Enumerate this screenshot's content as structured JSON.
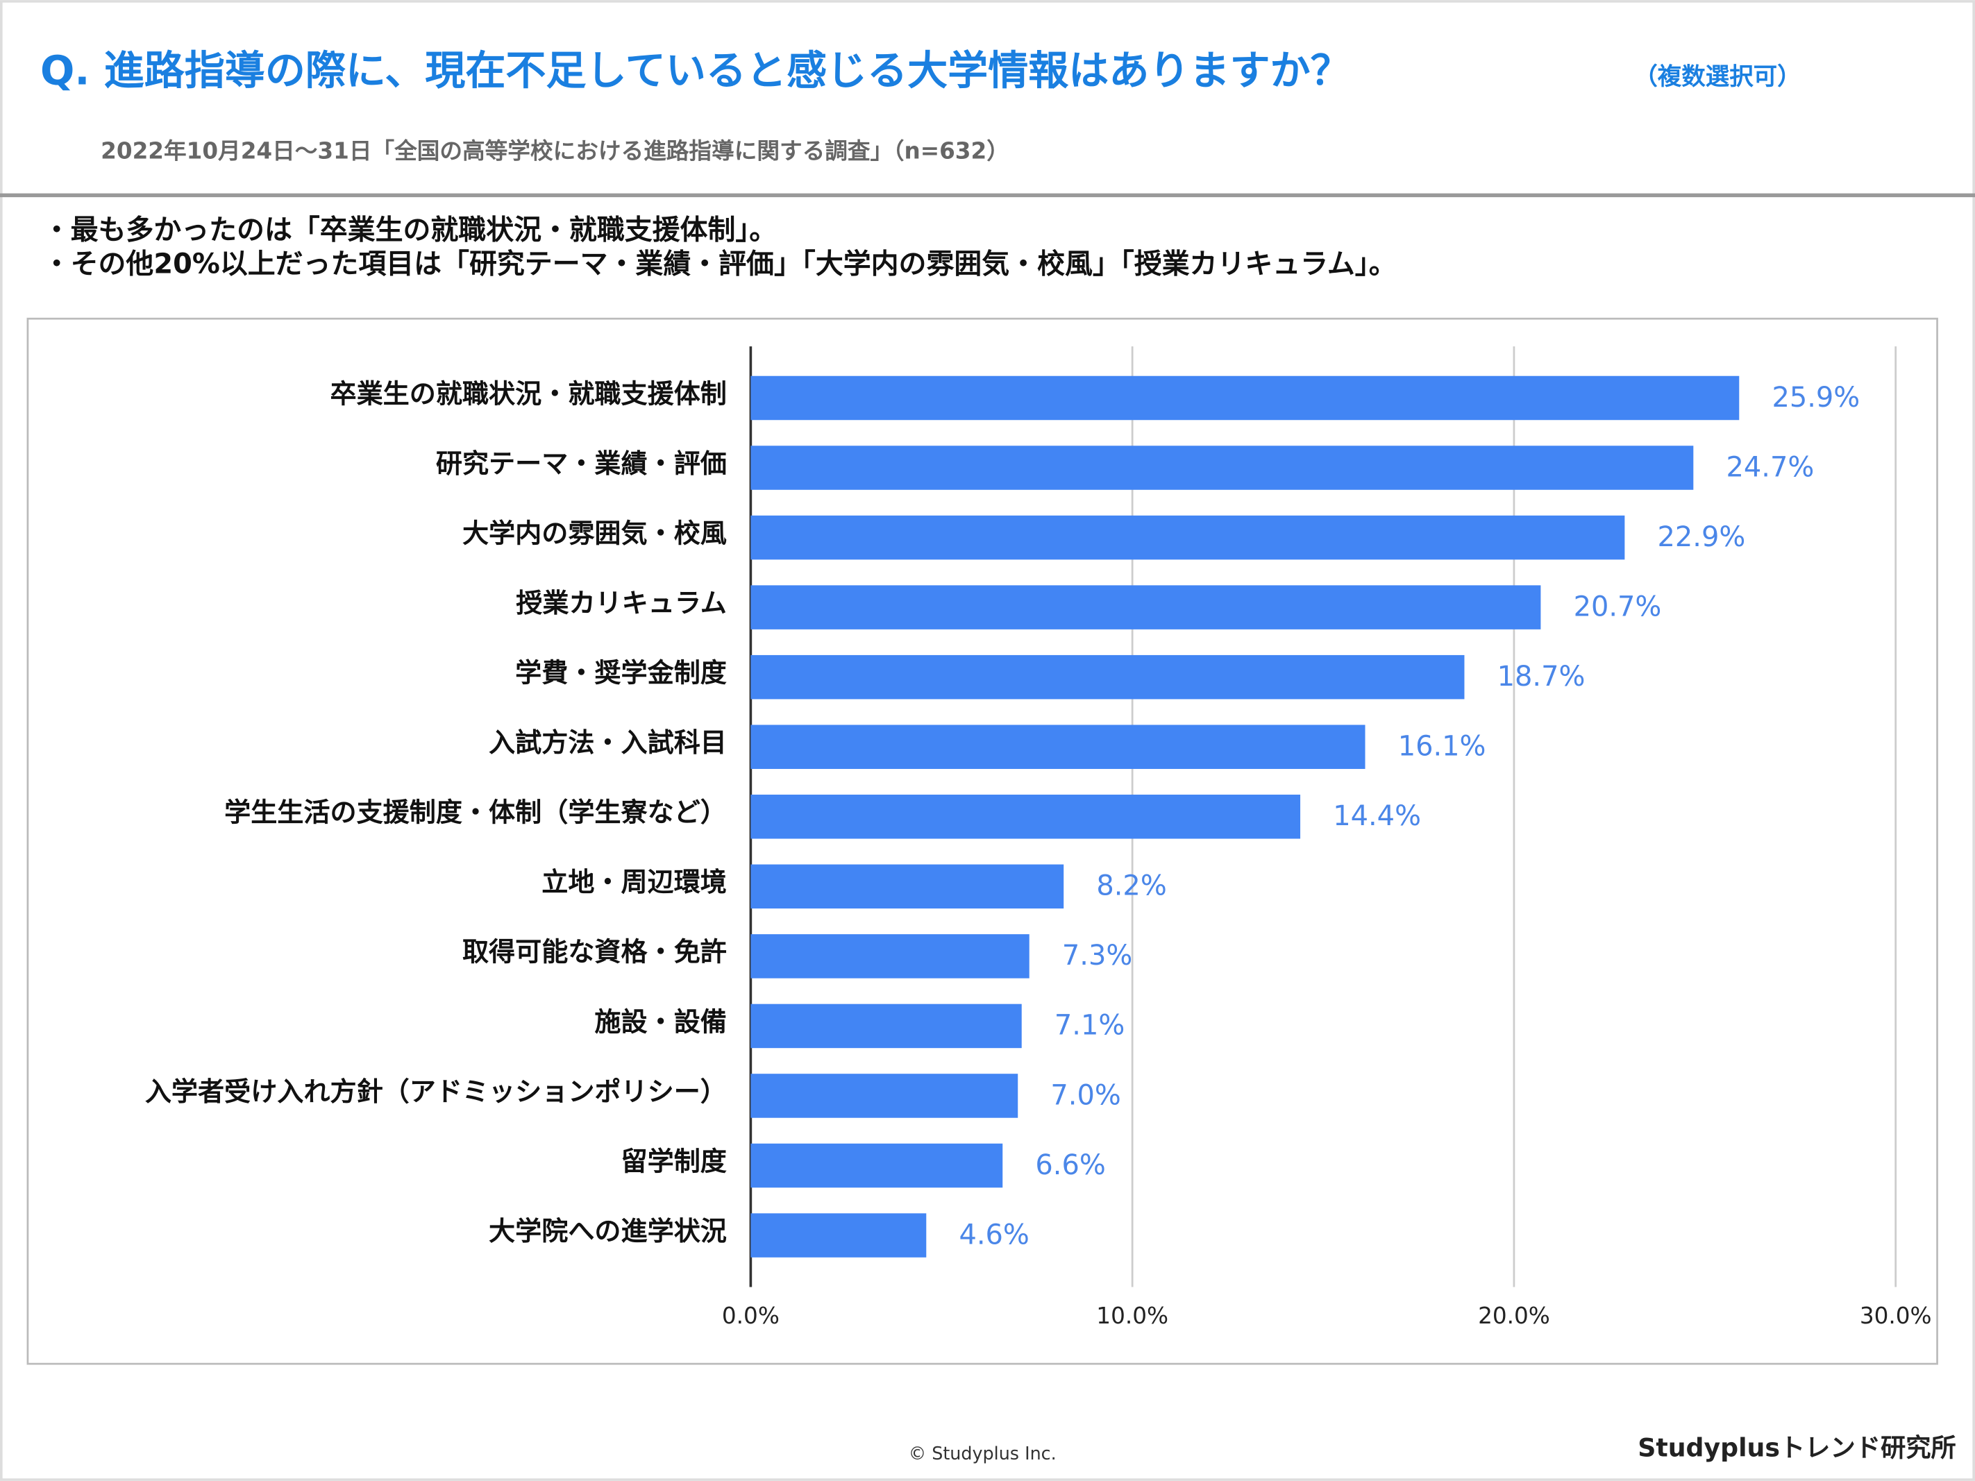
{
  "title": "Q. 進路指導の際に、現在不足していると感じる大学情報はありますか？",
  "title_note": "（複数選択可）",
  "subtitle": "2022年10月24日～31日「全国の高等学校における進路指導に関する調査」（n=632）",
  "bullets": [
    "・最も多かったのは「卒業生の就職状況・就職支援体制」。",
    "・その他20%以上だった項目は「研究テーマ・業績・評価」「大学内の雰囲気・校風」「授業カリキュラム」。"
  ],
  "copyright": "© Studyplus Inc.",
  "brand": "Studyplusトレンド研究所",
  "chart_data": {
    "type": "hbar",
    "categories": [
      "卒業生の就職状況・就職支援体制",
      "研究テーマ・業績・評価",
      "大学内の雰囲気・校風",
      "授業カリキュラム",
      "学費・奨学金制度",
      "入試方法・入試科目",
      "学生生活の支援制度・体制（学生寮など）",
      "立地・周辺環境",
      "取得可能な資格・免許",
      "施設・設備",
      "入学者受け入れ方針（アドミッションポリシー）",
      "留学制度",
      "大学院への進学状況"
    ],
    "values": [
      25.9,
      24.7,
      22.9,
      20.7,
      18.7,
      16.1,
      14.4,
      8.2,
      7.3,
      7.1,
      7.0,
      6.6,
      4.6
    ],
    "value_labels": [
      "25.9%",
      "24.7%",
      "22.9%",
      "20.7%",
      "18.7%",
      "16.1%",
      "14.4%",
      "8.2%",
      "7.3%",
      "7.1%",
      "7.0%",
      "6.6%",
      "4.6%"
    ],
    "color": "#4285f4",
    "xlim": [
      0,
      30
    ],
    "xticks": [
      {
        "value": 0,
        "label": "0.0%"
      },
      {
        "value": 10,
        "label": "10.0%"
      },
      {
        "value": 20,
        "label": "20.0%"
      },
      {
        "value": 30,
        "label": "30.0%"
      }
    ],
    "grid": true
  }
}
